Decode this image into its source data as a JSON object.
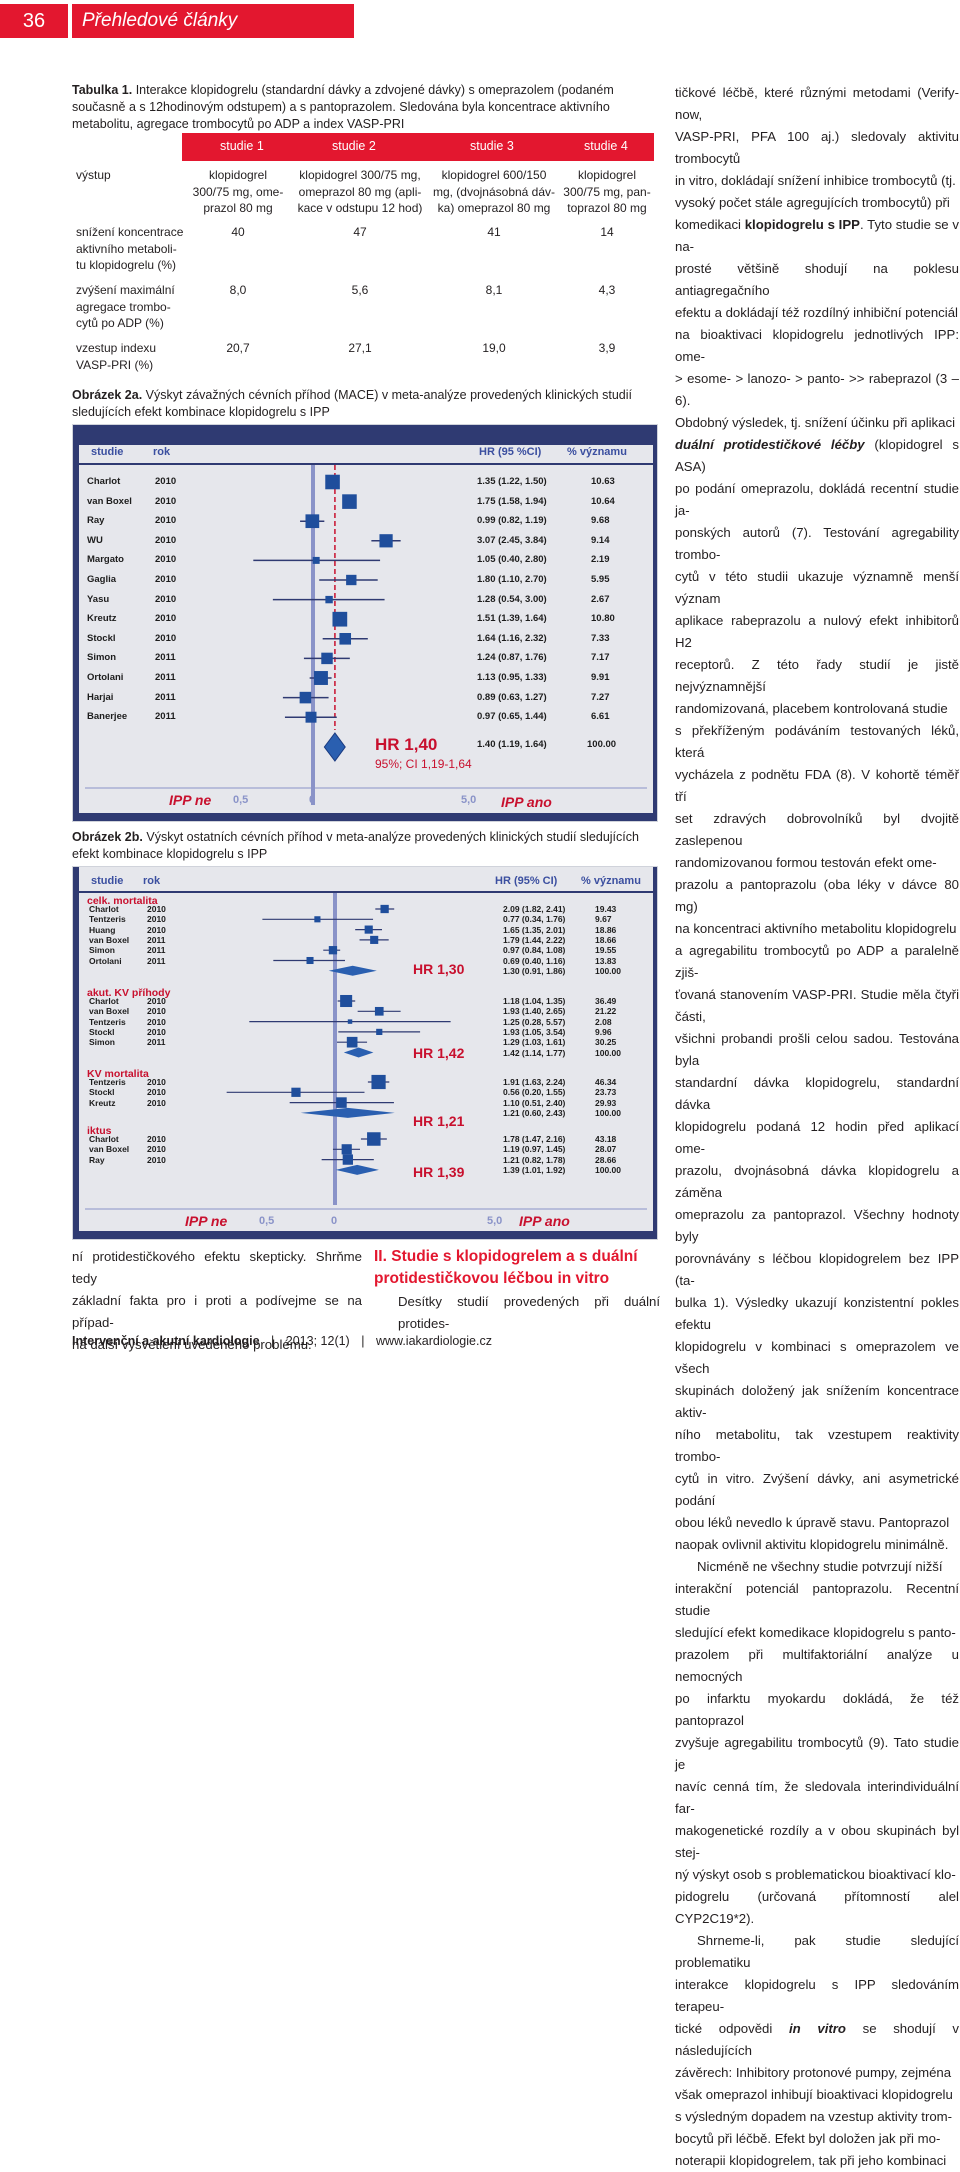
{
  "header": {
    "page_number": "36",
    "section": "Přehledové články"
  },
  "table1": {
    "caption_bold": "Tabulka 1.",
    "caption_lines": [
      "Interakce klopidogrelu (standardní dávky a zdvojené dávky) s omeprazolem (podaném",
      "současně a s 12hodinovým odstupem) a s pantoprazolem. Sledována byla koncentrace aktivního",
      "metabolitu, agregace trombocytů po ADP a index VASP-PRI"
    ],
    "columns": [
      "studie 1",
      "studie 2",
      "studie 3",
      "studie 4"
    ],
    "row_label_vystup": "výstup",
    "vystup": [
      [
        "klopidogrel",
        "300/75 mg, ome-",
        "prazol 80 mg"
      ],
      [
        "klopidogrel 300/75 mg,",
        "omeprazol 80 mg (apli-",
        "kace v odstupu 12 hod)"
      ],
      [
        "klopidogrel 600/150",
        "mg, (dvojnásobná dáv-",
        "ka) omeprazol 80 mg"
      ],
      [
        "klopidogrel",
        "300/75 mg, pan-",
        "toprazol 80 mg"
      ]
    ],
    "rows": [
      {
        "label": [
          "snížení koncentrace",
          "aktivního metaboli-",
          "tu klopidogrelu (%)"
        ],
        "values": [
          "40",
          "47",
          "41",
          "14"
        ]
      },
      {
        "label": [
          "zvýšení maximální",
          "agregace trombo-",
          "cytů po ADP (%)"
        ],
        "values": [
          "8,0",
          "5,6",
          "8,1",
          "4,3"
        ]
      },
      {
        "label": [
          "vzestup indexu",
          "VASP-PRI (%)"
        ],
        "values": [
          "20,7",
          "27,1",
          "19,0",
          "3,9"
        ]
      }
    ]
  },
  "fig2a": {
    "caption_bold": "Obrázek 2a.",
    "caption_lines": [
      "Výskyt závažných cévních příhod (MACE) v meta-analýze provedených klinických studií",
      "sledujících efekt kombinace klopidogrelu s IPP"
    ],
    "col_study": "studie",
    "col_year": "rok",
    "col_hr": "HR (95 %CI)",
    "col_weight": "% významu",
    "rows": [
      {
        "study": "Charlot",
        "year": "2010",
        "hr": "1.35 (1.22, 1.50)",
        "w": "10.63"
      },
      {
        "study": "van Boxel",
        "year": "2010",
        "hr": "1.75 (1.58, 1.94)",
        "w": "10.64"
      },
      {
        "study": "Ray",
        "year": "2010",
        "hr": "0.99 (0.82, 1.19)",
        "w": "9.68"
      },
      {
        "study": "WU",
        "year": "2010",
        "hr": "3.07 (2.45, 3.84)",
        "w": "9.14"
      },
      {
        "study": "Margato",
        "year": "2010",
        "hr": "1.05 (0.40, 2.80)",
        "w": "2.19"
      },
      {
        "study": "Gaglia",
        "year": "2010",
        "hr": "1.80 (1.10, 2.70)",
        "w": "5.95"
      },
      {
        "study": "Yasu",
        "year": "2010",
        "hr": "1.28 (0.54, 3.00)",
        "w": "2.67"
      },
      {
        "study": "Kreutz",
        "year": "2010",
        "hr": "1.51 (1.39, 1.64)",
        "w": "10.80"
      },
      {
        "study": "Stockl",
        "year": "2010",
        "hr": "1.64 (1.16, 2.32)",
        "w": "7.33"
      },
      {
        "study": "Simon",
        "year": "2011",
        "hr": "1.24 (0.87, 1.76)",
        "w": "7.17"
      },
      {
        "study": "Ortolani",
        "year": "2011",
        "hr": "1.13 (0.95, 1.33)",
        "w": "9.91"
      },
      {
        "study": "Harjai",
        "year": "2011",
        "hr": "0.89 (0.63, 1.27)",
        "w": "7.27"
      },
      {
        "study": "Banerjee",
        "year": "2011",
        "hr": "0.97 (0.65, 1.44)",
        "w": "6.61"
      }
    ],
    "pooled_hr": "1.40 (1.19, 1.64)",
    "pooled_w": "100.00",
    "big_label": "HR 1,40",
    "ci_label": "95%; CI 1,19-1,64",
    "axis_left": "IPP ne",
    "axis_right": "IPP ano",
    "tick_05": "0,5",
    "tick_0": "0",
    "tick_5": "5,0"
  },
  "fig2b": {
    "caption_bold": "Obrázek 2b.",
    "caption_lines": [
      "Výskyt ostatních cévních příhod v meta-analýze provedených klinických studií sledujících",
      "efekt kombinace klopidogrelu s IPP"
    ],
    "col_study": "studie",
    "col_year": "rok",
    "col_hr": "HR (95% CI)",
    "col_weight": "% významu",
    "groups": [
      {
        "name": "celk. mortalita",
        "rows": [
          {
            "study": "Charlot",
            "year": "2010",
            "hr": "2.09 (1.82, 2.41)",
            "w": "19.43"
          },
          {
            "study": "Tentzeris",
            "year": "2010",
            "hr": "0.77 (0.34, 1.76)",
            "w": "9.67"
          },
          {
            "study": "Huang",
            "year": "2010",
            "hr": "1.65 (1.35, 2.01)",
            "w": "18.86"
          },
          {
            "study": "van Boxel",
            "year": "2011",
            "hr": "1.79 (1.44, 2.22)",
            "w": "18.66"
          },
          {
            "study": "Simon",
            "year": "2011",
            "hr": "0.97 (0.84, 1.08)",
            "w": "19.55"
          },
          {
            "study": "Ortolani",
            "year": "2011",
            "hr": "0.69 (0.40, 1.16)",
            "w": "13.83"
          }
        ],
        "pooled_hr": "1.30 (0.91, 1.86)",
        "pooled_w": "100.00",
        "label": "HR 1,30"
      },
      {
        "name": "akut. KV příhody",
        "rows": [
          {
            "study": "Charlot",
            "year": "2010",
            "hr": "1.18 (1.04, 1.35)",
            "w": "36.49"
          },
          {
            "study": "van Boxel",
            "year": "2010",
            "hr": "1.93 (1.40, 2.65)",
            "w": "21.22"
          },
          {
            "study": "Tentzeris",
            "year": "2010",
            "hr": "1.25 (0.28, 5.57)",
            "w": "2.08"
          },
          {
            "study": "Stockl",
            "year": "2010",
            "hr": "1.93 (1.05, 3.54)",
            "w": "9.96"
          },
          {
            "study": "Simon",
            "year": "2011",
            "hr": "1.29 (1.03, 1.61)",
            "w": "30.25"
          }
        ],
        "pooled_hr": "1.42 (1.14, 1.77)",
        "pooled_w": "100.00",
        "label": "HR 1,42"
      },
      {
        "name": "KV mortalita",
        "rows": [
          {
            "study": "Tentzeris",
            "year": "2010",
            "hr": "1.91 (1.63, 2.24)",
            "w": "46.34"
          },
          {
            "study": "Stockl",
            "year": "2010",
            "hr": "0.56 (0.20, 1.55)",
            "w": "23.73"
          },
          {
            "study": "Kreutz",
            "year": "2010",
            "hr": "1.10 (0.51, 2.40)",
            "w": "29.93"
          }
        ],
        "pooled_hr": "1.21 (0.60, 2.43)",
        "pooled_w": "100.00",
        "label": "HR 1,21"
      },
      {
        "name": "iktus",
        "rows": [
          {
            "study": "Charlot",
            "year": "2010",
            "hr": "1.78 (1.47, 2.16)",
            "w": "43.18"
          },
          {
            "study": "van Boxel",
            "year": "2010",
            "hr": "1.19 (0.97, 1.45)",
            "w": "28.07"
          },
          {
            "study": "Ray",
            "year": "2010",
            "hr": "1.21 (0.82, 1.78)",
            "w": "28.66"
          }
        ],
        "pooled_hr": "1.39 (1.01, 1.92)",
        "pooled_w": "100.00",
        "label": "HR 1,39"
      }
    ],
    "axis_left": "IPP ne",
    "axis_right": "IPP ano",
    "tick_05": "0,5",
    "tick_0": "0",
    "tick_5": "5,0"
  },
  "left_bottom": [
    "ní protidestičkového efektu skepticky. Shrňme tedy",
    "základní fakta pro i proti a podívejme se na případ-",
    "ná další vysvětlení uvedeného problému."
  ],
  "sec2_heading": [
    "II. Studie s klopidogrelem a s duální",
    "protidestičkovou léčbou in vitro"
  ],
  "sec2_first": "Desítky studií provedených při duální protides-",
  "right_col": [
    "tičkové léčbě, které různými metodami (Verify-now,",
    "VASP-PRI, PFA 100 aj.) sledovaly aktivitu trombocytů",
    "in vitro, dokládají snížení inhibice trombocytů (tj.",
    "vysoký počet stále agregujících trombocytů) při",
    "komedikaci klopidogrelu s IPP. Tyto studie se v na-",
    "prosté většině shodují na poklesu antiagregačního",
    "efektu a dokládají též rozdílný inhibiční potenciál",
    "na bioaktivaci klopidogrelu jednotlivých IPP: ome-",
    "> esome- > lanozo- > panto- >> rabeprazol (3 – 6).",
    "Obdobný výsledek, tj. snížení účinku při aplikaci",
    "duální protidestičkové léčby (klopidogrel s ASA)",
    "po podání omeprazolu, dokládá recentní studie ja-",
    "ponských autorů (7). Testování agregability trombo-",
    "cytů v této studii ukazuje významně menší význam",
    "aplikace rabeprazolu a nulový efekt inhibitorů H2",
    "receptorů. Z této řady studií je jistě nejvýznamnější",
    "randomizovaná, placebem kontrolovaná studie",
    "s překříženým podáváním testovaných léků, která",
    "vycházela z podnětu FDA (8). V kohortě téměř tří",
    "set zdravých dobrovolníků byl dvojitě zaslepenou",
    "randomizovanou formou testován efekt ome-",
    "prazolu a pantoprazolu (oba léky v dávce 80 mg)",
    "na koncentraci aktivního metabolitu klopidogrelu",
    "a agregabilitu trombocytů po ADP a paralelně zjiš-",
    "ťovaná stanovením VASP-PRI. Studie měla čtyři části,",
    "všichni probandi prošli celou sadou. Testována byla",
    "standardní dávka klopidogrelu, standardní dávka",
    "klopidogrelu podaná 12 hodin před aplikací ome-",
    "prazolu, dvojnásobná dávka klopidogrelu a záměna",
    "omeprazolu za pantoprazol. Všechny hodnoty byly",
    "porovnávány s léčbou klopidogrelem bez IPP (ta-",
    "bulka 1). Výsledky ukazují konzistentní pokles efektu",
    "klopidogrelu v kombinaci s omeprazolem ve všech",
    "skupinách doložený jak snížením koncentrace aktiv-",
    "ního metabolitu, tak vzestupem reaktivity trombo-",
    "cytů in vitro. Zvýšení dávky, ani asymetrické podání",
    "obou léků nevedlo k úpravě stavu. Pantoprazol",
    "naopak ovlivnil aktivitu klopidogrelu minimálně.",
    "Nicméně ne všechny studie potvrzují nižší",
    "interakční potenciál pantoprazolu. Recentní studie",
    "sledující efekt komedikace klopidogrelu s panto-",
    "prazolem při multifaktoriální analýze u nemocných",
    "po infarktu myokardu dokládá, že též pantoprazol",
    "zvyšuje agregabilitu trombocytů (9). Tato studie je",
    "navíc cenná tím, že sledovala interindividuální far-",
    "makogenetické rozdíly a v obou skupinách byl stej-",
    "ný výskyt osob s problematickou bioaktivací klo-",
    "pidogrelu (určovaná přítomností alel CYP2C19*2).",
    "Shrneme-li, pak studie sledující problematiku",
    "interakce klopidogrelu s IPP sledováním terapeu-",
    "tické odpovědi in vitro se shodují v následujících",
    "závěrech: Inhibitory protonové pumpy, zejména",
    "však omeprazol inhibují bioaktivaci klopidogrelu",
    "s výsledným dopadem na vzestup aktivity trom-",
    "bocytů při léčbě. Efekt byl doložen jak při mo-",
    "noterapii klopidogrelem, tak při jeho kombinaci"
  ],
  "footer": {
    "journal": "Intervenční a akutní kardiologie",
    "issue": "2013; 12(1)",
    "url": "www.iakardiologie.cz"
  }
}
